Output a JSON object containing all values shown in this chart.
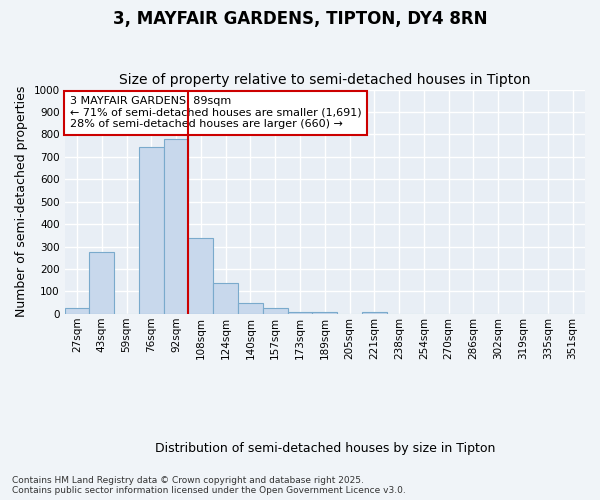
{
  "title": "3, MAYFAIR GARDENS, TIPTON, DY4 8RN",
  "subtitle": "Size of property relative to semi-detached houses in Tipton",
  "xlabel": "Distribution of semi-detached houses by size in Tipton",
  "ylabel": "Number of semi-detached properties",
  "bins": [
    "27sqm",
    "43sqm",
    "59sqm",
    "76sqm",
    "92sqm",
    "108sqm",
    "124sqm",
    "140sqm",
    "157sqm",
    "173sqm",
    "189sqm",
    "205sqm",
    "221sqm",
    "238sqm",
    "254sqm",
    "270sqm",
    "286sqm",
    "302sqm",
    "319sqm",
    "335sqm",
    "351sqm"
  ],
  "values": [
    25,
    275,
    0,
    745,
    780,
    340,
    135,
    50,
    25,
    10,
    10,
    0,
    10,
    0,
    0,
    0,
    0,
    0,
    0,
    0,
    0
  ],
  "bar_color": "#c8d8ec",
  "bar_edge_color": "#7aaacc",
  "vline_index": 4,
  "vline_color": "#cc0000",
  "annotation_text": "3 MAYFAIR GARDENS: 89sqm\n← 71% of semi-detached houses are smaller (1,691)\n28% of semi-detached houses are larger (660) →",
  "annotation_box_color": "#ffffff",
  "annotation_box_edge_color": "#cc0000",
  "ylim": [
    0,
    1000
  ],
  "yticks": [
    0,
    100,
    200,
    300,
    400,
    500,
    600,
    700,
    800,
    900,
    1000
  ],
  "footnote": "Contains HM Land Registry data © Crown copyright and database right 2025.\nContains public sector information licensed under the Open Government Licence v3.0.",
  "bg_color": "#f0f4f8",
  "plot_bg_color": "#e8eef5",
  "grid_color": "#ffffff",
  "title_fontsize": 12,
  "subtitle_fontsize": 10,
  "axis_label_fontsize": 9,
  "tick_fontsize": 7.5,
  "annotation_fontsize": 8,
  "footnote_fontsize": 6.5
}
